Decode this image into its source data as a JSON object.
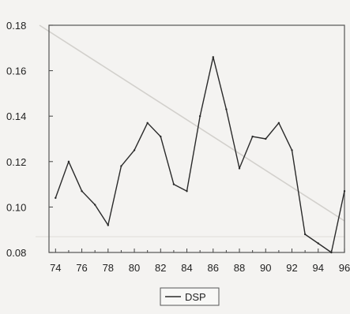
{
  "chart_data": {
    "type": "line",
    "title": "",
    "xlabel": "",
    "ylabel": "",
    "x": [
      74,
      75,
      76,
      77,
      78,
      79,
      80,
      81,
      82,
      83,
      84,
      85,
      86,
      87,
      88,
      89,
      90,
      91,
      92,
      93,
      94,
      95,
      96
    ],
    "x_tick_labels": [
      "74",
      "76",
      "78",
      "80",
      "82",
      "84",
      "86",
      "88",
      "90",
      "92",
      "94",
      "96"
    ],
    "x_tick_values": [
      74,
      76,
      78,
      80,
      82,
      84,
      86,
      88,
      90,
      92,
      94,
      96
    ],
    "xlim": [
      73.5,
      96
    ],
    "ylim": [
      0.08,
      0.18
    ],
    "y_tick_labels": [
      "0.08",
      "0.10",
      "0.12",
      "0.14",
      "0.16",
      "0.18"
    ],
    "y_tick_values": [
      0.08,
      0.1,
      0.12,
      0.14,
      0.16,
      0.18
    ],
    "series": [
      {
        "name": "DSP",
        "color": "#2a2a2a",
        "values": [
          0.104,
          0.12,
          0.107,
          0.101,
          0.092,
          0.118,
          0.125,
          0.137,
          0.131,
          0.11,
          0.107,
          0.14,
          0.166,
          0.143,
          0.117,
          0.131,
          0.13,
          0.137,
          0.125,
          0.088,
          0.084,
          0.08,
          0.107
        ]
      }
    ],
    "grid": false,
    "legend_position": "bottom-center"
  }
}
